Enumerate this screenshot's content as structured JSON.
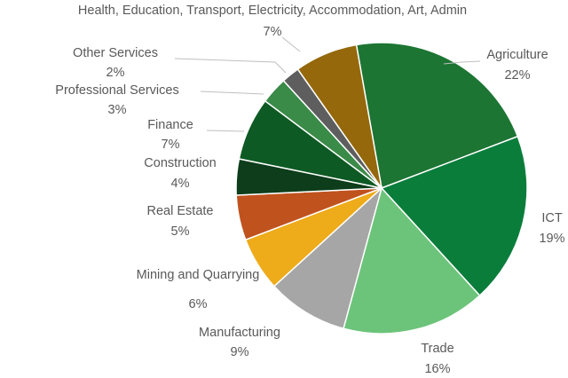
{
  "chart_data": {
    "type": "pie",
    "categories": [
      "Agriculture",
      "ICT",
      "Trade",
      "Manufacturing",
      "Mining and Quarrying",
      "Real Estate",
      "Construction",
      "Finance",
      "Professional Services",
      "Other Services",
      "Health, Education, Transport, Electricity, Accommodation, Art, Admin"
    ],
    "values": [
      22,
      19,
      16,
      9,
      6,
      5,
      4,
      7,
      3,
      2,
      7
    ],
    "value_labels": [
      "22%",
      "19%",
      "16%",
      "9%",
      "6%",
      "5%",
      "4%",
      "7%",
      "3%",
      "2%",
      "7%"
    ],
    "colors": [
      "#1c7533",
      "#0a7d3b",
      "#6cc47a",
      "#a6a6a6",
      "#eeab1a",
      "#c0521e",
      "#0d3d1a",
      "#0e5a24",
      "#3a8a48",
      "#5e5e5e",
      "#94680b"
    ]
  }
}
